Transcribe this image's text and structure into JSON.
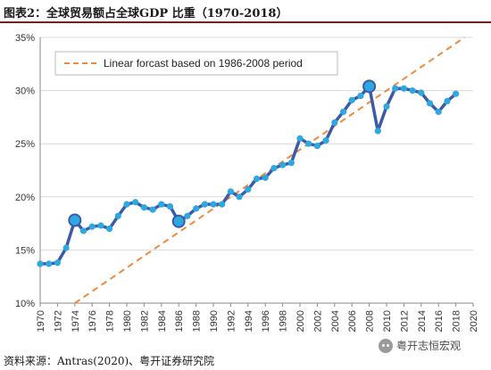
{
  "header": {
    "title": "图表2：全球贸易额占全球GDP 比重（1970-2018）"
  },
  "footer": {
    "source": "资料来源：Antras(2020)、粤开证券研究院",
    "watermark": "粤开志恒宏观"
  },
  "colors": {
    "series": "#3c5aa8",
    "marker": "#2ea8e0",
    "trend": "#ef8a3c",
    "title_rule": "#7a1e1e"
  },
  "chart_data": {
    "type": "line",
    "title": "",
    "xlabel": "",
    "ylabel": "",
    "xlim": [
      1970,
      2020
    ],
    "ylim": [
      10,
      35
    ],
    "x_ticks": [
      "1970",
      "1972",
      "1974",
      "1976",
      "1978",
      "1980",
      "1982",
      "1984",
      "1986",
      "1988",
      "1990",
      "1992",
      "1994",
      "1996",
      "1998",
      "2000",
      "2002",
      "2004",
      "2006",
      "2008",
      "2010",
      "2012",
      "2014",
      "2016",
      "2018",
      "2020"
    ],
    "y_ticks": [
      "10%",
      "15%",
      "20%",
      "25%",
      "30%",
      "35%"
    ],
    "grid": "horizontal",
    "legend_position": "top-left",
    "series": [
      {
        "name": "",
        "x": [
          1970,
          1971,
          1972,
          1973,
          1974,
          1975,
          1976,
          1977,
          1978,
          1979,
          1980,
          1981,
          1982,
          1983,
          1984,
          1985,
          1986,
          1987,
          1988,
          1989,
          1990,
          1991,
          1992,
          1993,
          1994,
          1995,
          1996,
          1997,
          1998,
          1999,
          2000,
          2001,
          2002,
          2003,
          2004,
          2005,
          2006,
          2007,
          2008,
          2009,
          2010,
          2011,
          2012,
          2013,
          2014,
          2015,
          2016,
          2017,
          2018
        ],
        "y": [
          13.7,
          13.7,
          13.8,
          15.2,
          17.8,
          16.8,
          17.2,
          17.3,
          17.0,
          18.2,
          19.3,
          19.5,
          19.0,
          18.8,
          19.3,
          19.1,
          17.7,
          18.2,
          18.9,
          19.3,
          19.3,
          19.3,
          20.5,
          20.0,
          20.7,
          21.7,
          21.8,
          22.7,
          23.0,
          23.2,
          25.5,
          25.0,
          24.8,
          25.3,
          27.0,
          28.0,
          29.1,
          29.5,
          30.4,
          26.2,
          28.5,
          30.2,
          30.2,
          30.0,
          29.8,
          28.8,
          28.0,
          29.0,
          29.7
        ]
      }
    ],
    "highlight_points": [
      1974,
      1986,
      2008
    ],
    "trendline": {
      "name": "Linear forcast based on 1986-2008 period",
      "x": [
        1974,
        2019
      ],
      "y": [
        10.0,
        35.0
      ]
    }
  }
}
